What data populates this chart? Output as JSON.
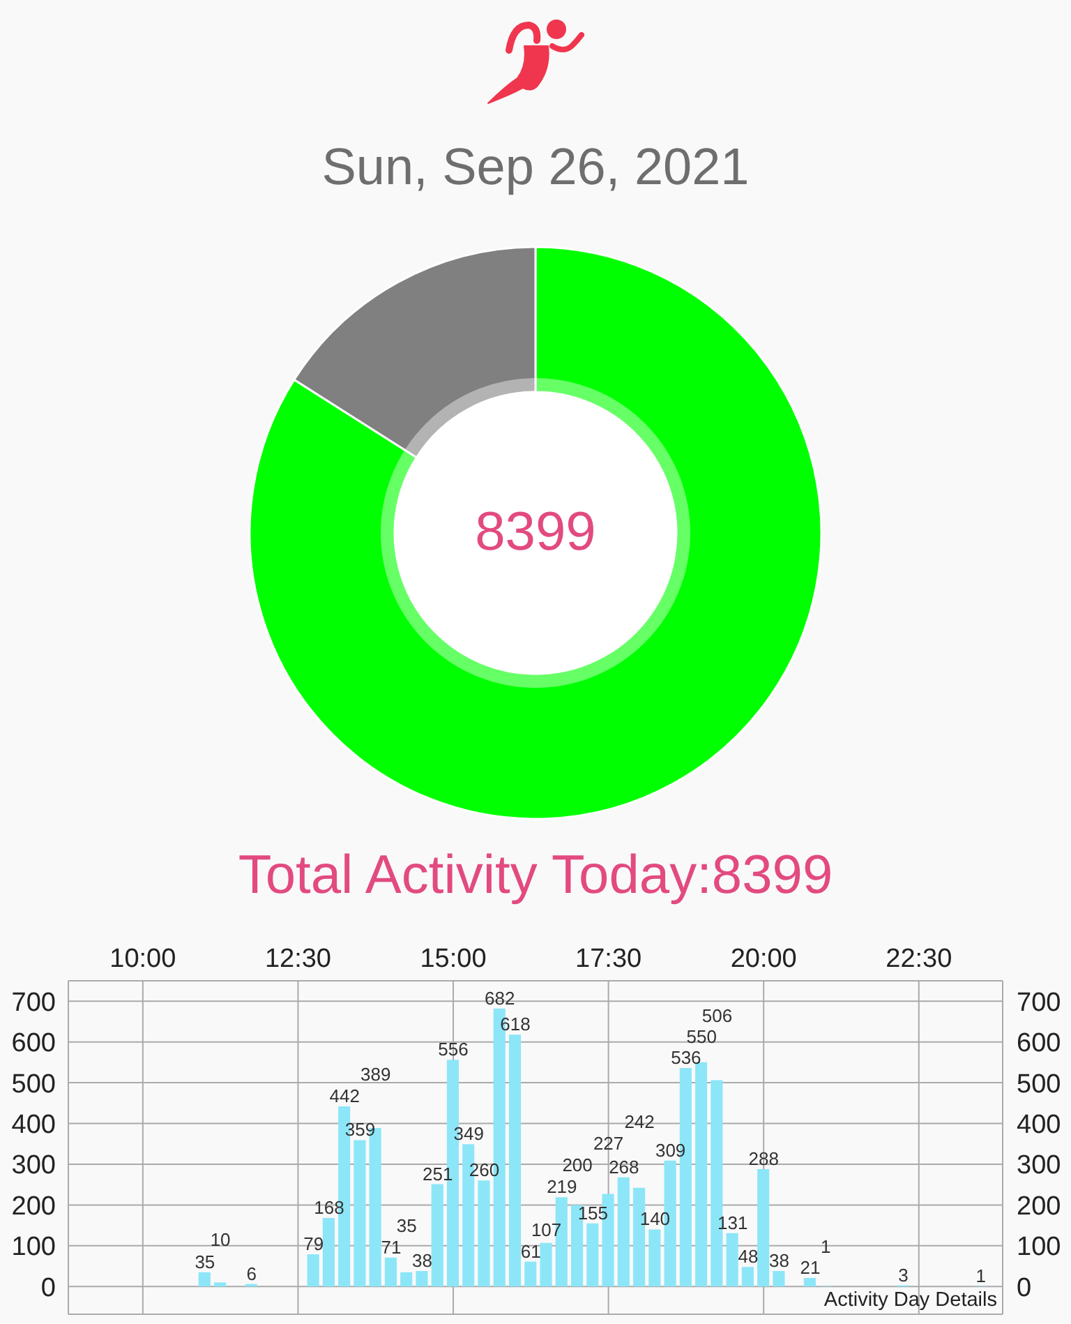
{
  "chart_data": [
    {
      "type": "donut",
      "title": "Sun, Sep 26, 2021",
      "categories": [
        null,
        null
      ],
      "values": [
        84,
        16
      ],
      "colors": [
        "#00ff00",
        "#808080"
      ],
      "annotations": [
        "8399",
        "Total Activity Today:8399"
      ]
    },
    {
      "type": "bar",
      "x": [
        11,
        11.25,
        11.75,
        12.75,
        13,
        13.25,
        13.5,
        13.75,
        14,
        14.25,
        14.5,
        14.75,
        15,
        15.25,
        15.5,
        15.75,
        16,
        16.25,
        16.5,
        16.75,
        17,
        17.25,
        17.5,
        17.75,
        18,
        18.25,
        18.5,
        18.75,
        19,
        19.25,
        19.5,
        19.75,
        20,
        20.25,
        20.75,
        21,
        22.25,
        23.5
      ],
      "values": [
        35,
        10,
        6,
        79,
        168,
        442,
        359,
        389,
        71,
        35,
        38,
        251,
        556,
        349,
        260,
        682,
        618,
        61,
        107,
        219,
        200,
        155,
        227,
        268,
        242,
        140,
        309,
        536,
        550,
        506,
        131,
        48,
        288,
        38,
        21,
        1,
        3,
        1
      ],
      "color": "#8ce6f8",
      "data_labels": true,
      "xlim": [
        8.8,
        23.85
      ],
      "xticks": [
        {
          "value": 10,
          "label": "10:00"
        },
        {
          "value": 12.5,
          "label": "12:30"
        },
        {
          "value": 15,
          "label": "15:00"
        },
        {
          "value": 17.5,
          "label": "17:30"
        },
        {
          "value": 20,
          "label": "20:00"
        },
        {
          "value": 22.5,
          "label": "22:30"
        }
      ],
      "ylim": [
        -68,
        750
      ],
      "yticks": [
        0,
        100,
        200,
        300,
        400,
        500,
        600,
        700
      ],
      "y2lim": [
        -68,
        750
      ],
      "y2ticks": [
        0,
        100,
        200,
        300,
        400,
        500,
        600,
        700
      ],
      "grid": true,
      "annotations": [
        "Activity Day Details"
      ]
    }
  ]
}
